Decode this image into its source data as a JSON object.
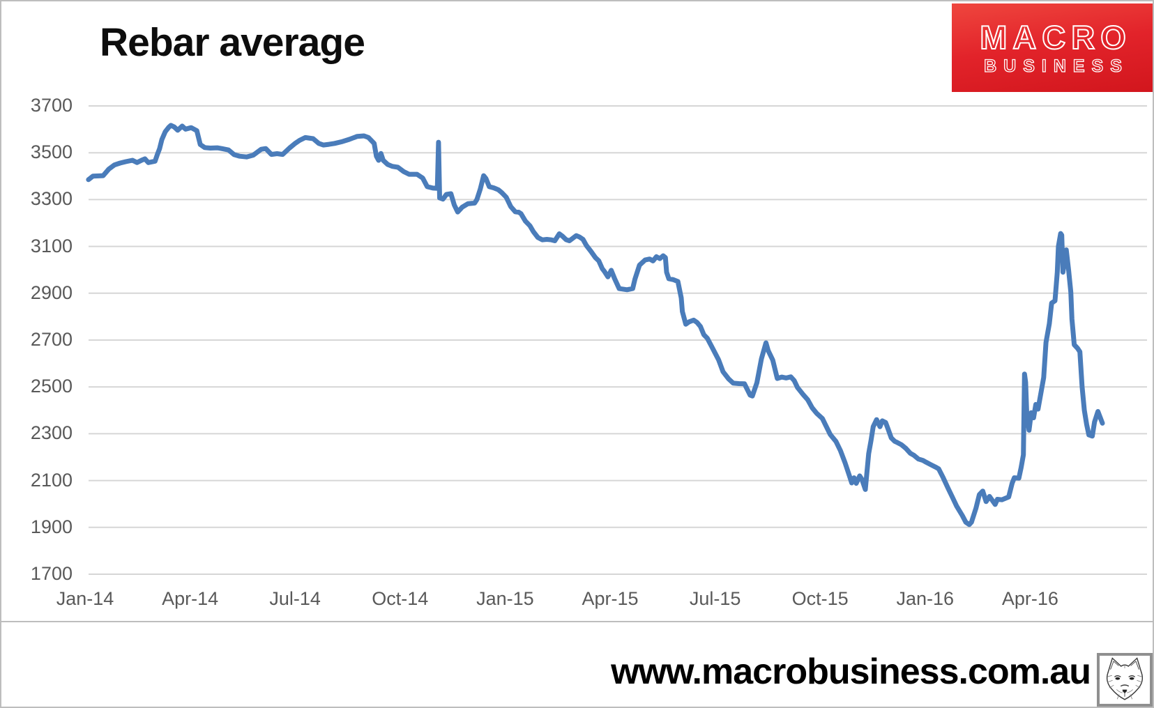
{
  "logo": {
    "line1": "MACRO",
    "line2": "BUSINESS",
    "bg_color": "#e2232a",
    "text_color": "#ffffff"
  },
  "footer": {
    "url": "www.macrobusiness.com.au"
  },
  "chart_data": {
    "type": "line",
    "title": "Rebar average",
    "series_name": "Rebar average",
    "line_color": "#4a7cba",
    "grid_color": "#d6d6d6",
    "tick_color": "#595959",
    "ylim": [
      1700,
      3700
    ],
    "ytick_step": 200,
    "yticks": [
      3700,
      3500,
      3300,
      3100,
      2900,
      2700,
      2500,
      2300,
      2100,
      1900,
      1700
    ],
    "xticks": [
      "Jan-14",
      "Apr-14",
      "Jul-14",
      "Oct-14",
      "Jan-15",
      "Apr-15",
      "Jul-15",
      "Oct-15",
      "Jan-16",
      "Apr-16"
    ],
    "grid": true,
    "legend": false,
    "points": [
      [
        "2014-01-04",
        3385
      ],
      [
        "2014-01-08",
        3400
      ],
      [
        "2014-01-17",
        3402
      ],
      [
        "2014-01-22",
        3430
      ],
      [
        "2014-01-27",
        3448
      ],
      [
        "2014-02-01",
        3456
      ],
      [
        "2014-02-06",
        3462
      ],
      [
        "2014-02-12",
        3468
      ],
      [
        "2014-02-16",
        3458
      ],
      [
        "2014-02-20",
        3468
      ],
      [
        "2014-02-23",
        3474
      ],
      [
        "2014-02-26",
        3458
      ],
      [
        "2014-03-01",
        3464
      ],
      [
        "2014-03-03",
        3492
      ],
      [
        "2014-03-05",
        3518
      ],
      [
        "2014-03-07",
        3556
      ],
      [
        "2014-03-10",
        3590
      ],
      [
        "2014-03-13",
        3608
      ],
      [
        "2014-03-15",
        3617
      ],
      [
        "2014-03-18",
        3610
      ],
      [
        "2014-03-21",
        3596
      ],
      [
        "2014-03-25",
        3614
      ],
      [
        "2014-03-28",
        3601
      ],
      [
        "2014-04-02",
        3607
      ],
      [
        "2014-04-07",
        3594
      ],
      [
        "2014-04-10",
        3535
      ],
      [
        "2014-04-14",
        3522
      ],
      [
        "2014-04-19",
        3520
      ],
      [
        "2014-04-25",
        3521
      ],
      [
        "2014-04-29",
        3518
      ],
      [
        "2014-05-04",
        3512
      ],
      [
        "2014-05-09",
        3492
      ],
      [
        "2014-05-14",
        3485
      ],
      [
        "2014-05-20",
        3482
      ],
      [
        "2014-05-26",
        3490
      ],
      [
        "2014-06-02",
        3515
      ],
      [
        "2014-06-06",
        3518
      ],
      [
        "2014-06-11",
        3493
      ],
      [
        "2014-06-16",
        3496
      ],
      [
        "2014-06-21",
        3493
      ],
      [
        "2014-06-27",
        3520
      ],
      [
        "2014-07-01",
        3540
      ],
      [
        "2014-07-05",
        3553
      ],
      [
        "2014-07-10",
        3565
      ],
      [
        "2014-07-17",
        3560
      ],
      [
        "2014-07-22",
        3540
      ],
      [
        "2014-07-26",
        3533
      ],
      [
        "2014-07-31",
        3536
      ],
      [
        "2014-08-05",
        3540
      ],
      [
        "2014-08-12",
        3548
      ],
      [
        "2014-08-18",
        3557
      ],
      [
        "2014-08-25",
        3570
      ],
      [
        "2014-08-31",
        3572
      ],
      [
        "2014-09-04",
        3565
      ],
      [
        "2014-09-09",
        3540
      ],
      [
        "2014-09-11",
        3485
      ],
      [
        "2014-09-13",
        3468
      ],
      [
        "2014-09-15",
        3497
      ],
      [
        "2014-09-17",
        3468
      ],
      [
        "2014-09-21",
        3450
      ],
      [
        "2014-09-25",
        3442
      ],
      [
        "2014-09-30",
        3438
      ],
      [
        "2014-10-04",
        3420
      ],
      [
        "2014-10-09",
        3408
      ],
      [
        "2014-10-16",
        3408
      ],
      [
        "2014-10-21",
        3392
      ],
      [
        "2014-10-25",
        3355
      ],
      [
        "2014-10-30",
        3349
      ],
      [
        "2014-11-03",
        3348
      ],
      [
        "2014-11-04",
        3545
      ],
      [
        "2014-11-05",
        3307
      ],
      [
        "2014-11-08",
        3302
      ],
      [
        "2014-11-11",
        3322
      ],
      [
        "2014-11-15",
        3325
      ],
      [
        "2014-11-18",
        3277
      ],
      [
        "2014-11-21",
        3247
      ],
      [
        "2014-11-25",
        3268
      ],
      [
        "2014-11-30",
        3282
      ],
      [
        "2014-12-05",
        3285
      ],
      [
        "2014-12-07",
        3300
      ],
      [
        "2014-12-10",
        3345
      ],
      [
        "2014-12-13",
        3402
      ],
      [
        "2014-12-15",
        3390
      ],
      [
        "2014-12-18",
        3355
      ],
      [
        "2014-12-22",
        3350
      ],
      [
        "2014-12-26",
        3342
      ],
      [
        "2014-12-29",
        3330
      ],
      [
        "2015-01-02",
        3310
      ],
      [
        "2015-01-06",
        3270
      ],
      [
        "2015-01-10",
        3248
      ],
      [
        "2015-01-13",
        3246
      ],
      [
        "2015-01-15",
        3240
      ],
      [
        "2015-01-19",
        3208
      ],
      [
        "2015-01-23",
        3188
      ],
      [
        "2015-01-26",
        3163
      ],
      [
        "2015-01-30",
        3138
      ],
      [
        "2015-02-03",
        3128
      ],
      [
        "2015-02-07",
        3130
      ],
      [
        "2015-02-11",
        3128
      ],
      [
        "2015-02-14",
        3124
      ],
      [
        "2015-02-18",
        3154
      ],
      [
        "2015-02-21",
        3143
      ],
      [
        "2015-02-24",
        3129
      ],
      [
        "2015-02-27",
        3124
      ],
      [
        "2015-03-02",
        3146
      ],
      [
        "2015-03-05",
        3140
      ],
      [
        "2015-03-08",
        3130
      ],
      [
        "2015-03-11",
        3104
      ],
      [
        "2015-03-15",
        3079
      ],
      [
        "2015-03-19",
        3052
      ],
      [
        "2015-03-22",
        3038
      ],
      [
        "2015-03-25",
        3005
      ],
      [
        "2015-03-27",
        2993
      ],
      [
        "2015-03-30",
        2970
      ],
      [
        "2015-04-02",
        2998
      ],
      [
        "2015-04-05",
        2962
      ],
      [
        "2015-04-09",
        2920
      ],
      [
        "2015-04-16",
        2915
      ],
      [
        "2015-04-21",
        2920
      ],
      [
        "2015-04-23",
        2960
      ],
      [
        "2015-04-27",
        3020
      ],
      [
        "2015-05-01",
        3042
      ],
      [
        "2015-05-05",
        3046
      ],
      [
        "2015-05-08",
        3038
      ],
      [
        "2015-05-11",
        3056
      ],
      [
        "2015-05-14",
        3048
      ],
      [
        "2015-05-17",
        3060
      ],
      [
        "2015-05-19",
        3052
      ],
      [
        "2015-05-20",
        2990
      ],
      [
        "2015-05-22",
        2962
      ],
      [
        "2015-05-26",
        2958
      ],
      [
        "2015-05-30",
        2950
      ],
      [
        "2015-06-02",
        2880
      ],
      [
        "2015-06-03",
        2822
      ],
      [
        "2015-06-06",
        2768
      ],
      [
        "2015-06-09",
        2778
      ],
      [
        "2015-06-13",
        2785
      ],
      [
        "2015-06-16",
        2775
      ],
      [
        "2015-06-19",
        2758
      ],
      [
        "2015-06-22",
        2723
      ],
      [
        "2015-06-25",
        2708
      ],
      [
        "2015-06-29",
        2672
      ],
      [
        "2015-07-04",
        2616
      ],
      [
        "2015-07-08",
        2565
      ],
      [
        "2015-07-13",
        2534
      ],
      [
        "2015-07-17",
        2516
      ],
      [
        "2015-07-22",
        2514
      ],
      [
        "2015-07-27",
        2513
      ],
      [
        "2015-08-01",
        2465
      ],
      [
        "2015-08-03",
        2461
      ],
      [
        "2015-08-07",
        2518
      ],
      [
        "2015-08-11",
        2620
      ],
      [
        "2015-08-15",
        2688
      ],
      [
        "2015-08-17",
        2655
      ],
      [
        "2015-08-21",
        2615
      ],
      [
        "2015-08-25",
        2536
      ],
      [
        "2015-08-29",
        2542
      ],
      [
        "2015-09-02",
        2538
      ],
      [
        "2015-09-06",
        2543
      ],
      [
        "2015-09-09",
        2527
      ],
      [
        "2015-09-12",
        2497
      ],
      [
        "2015-09-17",
        2467
      ],
      [
        "2015-09-21",
        2445
      ],
      [
        "2015-09-25",
        2410
      ],
      [
        "2015-09-29",
        2387
      ],
      [
        "2015-10-03",
        2365
      ],
      [
        "2015-10-06",
        2335
      ],
      [
        "2015-10-10",
        2296
      ],
      [
        "2015-10-15",
        2267
      ],
      [
        "2015-10-19",
        2228
      ],
      [
        "2015-10-23",
        2177
      ],
      [
        "2015-10-27",
        2119
      ],
      [
        "2015-10-29",
        2090
      ],
      [
        "2015-10-31",
        2112
      ],
      [
        "2015-11-02",
        2088
      ],
      [
        "2015-11-05",
        2120
      ],
      [
        "2015-11-07",
        2105
      ],
      [
        "2015-11-10",
        2062
      ],
      [
        "2015-11-13",
        2215
      ],
      [
        "2015-11-15",
        2270
      ],
      [
        "2015-11-17",
        2330
      ],
      [
        "2015-11-20",
        2360
      ],
      [
        "2015-11-23",
        2330
      ],
      [
        "2015-11-25",
        2355
      ],
      [
        "2015-11-28",
        2348
      ],
      [
        "2015-11-30",
        2322
      ],
      [
        "2015-12-02",
        2282
      ],
      [
        "2015-12-05",
        2268
      ],
      [
        "2015-12-07",
        2263
      ],
      [
        "2015-12-11",
        2253
      ],
      [
        "2015-12-15",
        2237
      ],
      [
        "2015-12-19",
        2216
      ],
      [
        "2015-12-22",
        2208
      ],
      [
        "2015-12-26",
        2192
      ],
      [
        "2015-12-30",
        2186
      ],
      [
        "2016-01-02",
        2178
      ],
      [
        "2016-01-06",
        2168
      ],
      [
        "2016-01-10",
        2158
      ],
      [
        "2016-01-13",
        2150
      ],
      [
        "2016-01-17",
        2112
      ],
      [
        "2016-01-21",
        2070
      ],
      [
        "2016-01-25",
        2030
      ],
      [
        "2016-01-29",
        1990
      ],
      [
        "2016-02-03",
        1950
      ],
      [
        "2016-02-06",
        1922
      ],
      [
        "2016-02-09",
        1912
      ],
      [
        "2016-02-11",
        1922
      ],
      [
        "2016-02-15",
        1982
      ],
      [
        "2016-02-18",
        2040
      ],
      [
        "2016-02-21",
        2055
      ],
      [
        "2016-02-24",
        2010
      ],
      [
        "2016-02-27",
        2032
      ],
      [
        "2016-03-01",
        1998
      ],
      [
        "2016-03-03",
        2020
      ],
      [
        "2016-03-07",
        2018
      ],
      [
        "2016-03-10",
        2024
      ],
      [
        "2016-03-13",
        2030
      ],
      [
        "2016-03-16",
        2088
      ],
      [
        "2016-03-18",
        2112
      ],
      [
        "2016-03-22",
        2110
      ],
      [
        "2016-03-24",
        2155
      ],
      [
        "2016-03-26",
        2210
      ],
      [
        "2016-03-27",
        2555
      ],
      [
        "2016-03-28",
        2520
      ],
      [
        "2016-03-29",
        2390
      ],
      [
        "2016-03-31",
        2315
      ],
      [
        "2016-04-02",
        2390
      ],
      [
        "2016-04-04",
        2368
      ],
      [
        "2016-04-06",
        2425
      ],
      [
        "2016-04-08",
        2405
      ],
      [
        "2016-04-10",
        2460
      ],
      [
        "2016-04-13",
        2540
      ],
      [
        "2016-04-15",
        2690
      ],
      [
        "2016-04-18",
        2770
      ],
      [
        "2016-04-20",
        2858
      ],
      [
        "2016-04-23",
        2868
      ],
      [
        "2016-04-25",
        2990
      ],
      [
        "2016-04-26",
        3100
      ],
      [
        "2016-04-28",
        3155
      ],
      [
        "2016-04-29",
        3148
      ],
      [
        "2016-04-30",
        2990
      ],
      [
        "2016-05-02",
        3085
      ],
      [
        "2016-05-04",
        3000
      ],
      [
        "2016-05-06",
        2905
      ],
      [
        "2016-05-07",
        2790
      ],
      [
        "2016-05-09",
        2680
      ],
      [
        "2016-05-12",
        2665
      ],
      [
        "2016-05-14",
        2650
      ],
      [
        "2016-05-16",
        2500
      ],
      [
        "2016-05-18",
        2400
      ],
      [
        "2016-05-20",
        2340
      ],
      [
        "2016-05-22",
        2295
      ],
      [
        "2016-05-25",
        2290
      ],
      [
        "2016-05-27",
        2350
      ],
      [
        "2016-05-30",
        2395
      ],
      [
        "2016-06-01",
        2370
      ],
      [
        "2016-06-03",
        2345
      ]
    ]
  }
}
